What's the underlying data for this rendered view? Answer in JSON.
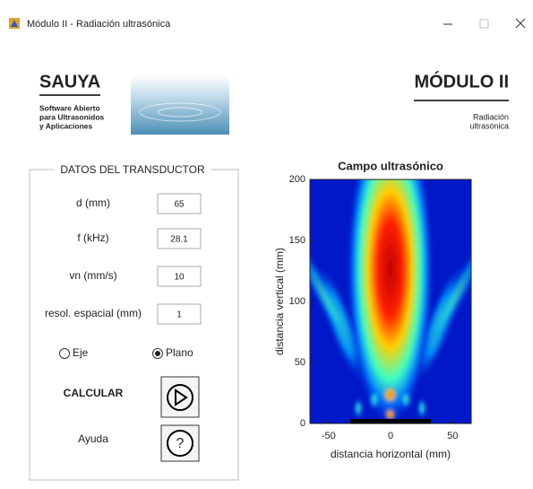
{
  "window": {
    "title": "Módulo II - Radiación ultrasónica"
  },
  "header": {
    "brand": "SAUYA",
    "tagline": [
      "Software Abierto",
      "para Ultrasonidos",
      "y Aplicaciones"
    ],
    "module": "MÓDULO II",
    "subtitle": [
      "Radiación",
      "ultrasónica"
    ]
  },
  "panel": {
    "title": "DATOS DEL TRANSDUCTOR",
    "fields": [
      {
        "label": "d (mm)",
        "value": 65
      },
      {
        "label": "f (kHz)",
        "value": 28.1
      },
      {
        "label": "vn (mm/s)",
        "value": 10
      },
      {
        "label": "resol. espacial (mm)",
        "value": 1
      }
    ],
    "radio": [
      {
        "label": "Eje",
        "selected": false
      },
      {
        "label": "Plano",
        "selected": true
      }
    ],
    "calcular": "CALCULAR",
    "ayuda": "Ayuda",
    "help_icon": "?"
  },
  "chart_data": {
    "type": "heatmap",
    "title": "Campo ultrasónico",
    "x_label": "distancia horizontal (mm)",
    "y_label": "distancia vertical (mm)",
    "xlim": [
      -65,
      65
    ],
    "xticks": [
      -50,
      0,
      50
    ],
    "ylim": [
      0,
      200
    ],
    "yticks": [
      0,
      50,
      100,
      150,
      200
    ]
  }
}
